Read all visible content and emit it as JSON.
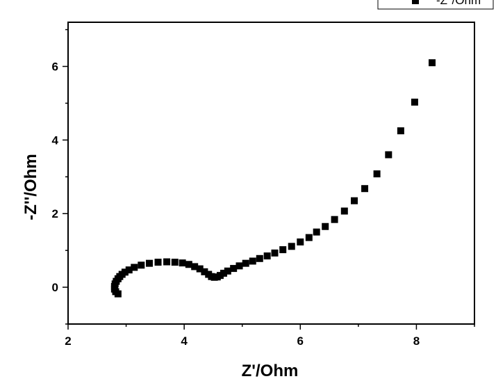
{
  "chart_data": {
    "type": "scatter",
    "xlabel": "Z'/Ohm",
    "ylabel": "-Z''/Ohm",
    "xlim": [
      2,
      9
    ],
    "ylim": [
      -1,
      7.2
    ],
    "xticks": [
      2,
      4,
      6,
      8
    ],
    "yticks": [
      0,
      2,
      4,
      6
    ],
    "grid": false,
    "legend_position": "top-right",
    "colors": {
      "marker": "#000000",
      "axis": "#000000"
    },
    "series": [
      {
        "name": "-Z''/Ohm",
        "marker": "square",
        "points": [
          [
            2.86,
            -0.18
          ],
          [
            2.82,
            -0.12
          ],
          [
            2.8,
            -0.05
          ],
          [
            2.8,
            0.02
          ],
          [
            2.81,
            0.09
          ],
          [
            2.83,
            0.16
          ],
          [
            2.86,
            0.23
          ],
          [
            2.89,
            0.29
          ],
          [
            2.93,
            0.35
          ],
          [
            2.98,
            0.41
          ],
          [
            3.05,
            0.47
          ],
          [
            3.14,
            0.54
          ],
          [
            3.26,
            0.6
          ],
          [
            3.4,
            0.65
          ],
          [
            3.55,
            0.68
          ],
          [
            3.7,
            0.69
          ],
          [
            3.84,
            0.68
          ],
          [
            3.97,
            0.66
          ],
          [
            4.08,
            0.62
          ],
          [
            4.18,
            0.56
          ],
          [
            4.27,
            0.5
          ],
          [
            4.35,
            0.42
          ],
          [
            4.42,
            0.35
          ],
          [
            4.47,
            0.29
          ],
          [
            4.52,
            0.27
          ],
          [
            4.57,
            0.28
          ],
          [
            4.62,
            0.32
          ],
          [
            4.68,
            0.38
          ],
          [
            4.75,
            0.44
          ],
          [
            4.85,
            0.51
          ],
          [
            4.95,
            0.58
          ],
          [
            5.06,
            0.65
          ],
          [
            5.18,
            0.71
          ],
          [
            5.3,
            0.78
          ],
          [
            5.43,
            0.85
          ],
          [
            5.56,
            0.93
          ],
          [
            5.7,
            1.02
          ],
          [
            5.85,
            1.11
          ],
          [
            6.0,
            1.23
          ],
          [
            6.15,
            1.35
          ],
          [
            6.28,
            1.5
          ],
          [
            6.43,
            1.65
          ],
          [
            6.59,
            1.84
          ],
          [
            6.76,
            2.07
          ],
          [
            6.93,
            2.35
          ],
          [
            7.11,
            2.68
          ],
          [
            7.32,
            3.08
          ],
          [
            7.52,
            3.6
          ],
          [
            7.73,
            4.25
          ],
          [
            7.97,
            5.03
          ],
          [
            8.27,
            6.1
          ]
        ]
      }
    ]
  }
}
